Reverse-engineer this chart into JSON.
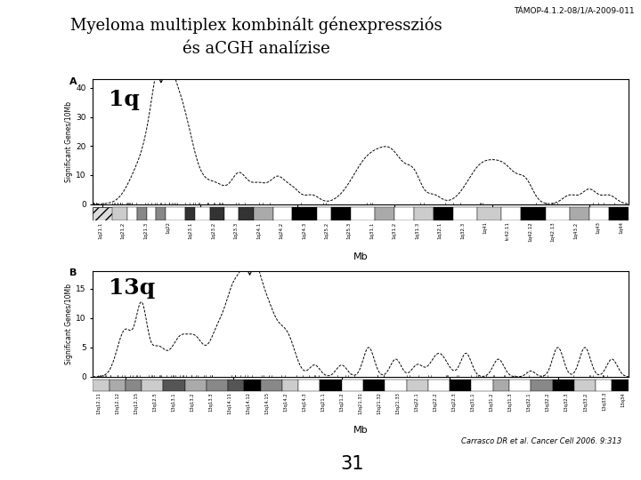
{
  "title_line1": "Myeloma multiplex kombinált génexpressziós",
  "title_line2": "és aCGH analízise",
  "top_right_text": "TÁMOP-4.1.2-08/1/A-2009-011",
  "citation": "Carrasco DR et al. Cancer Cell 2006. 9:313",
  "page_number": "31",
  "panel_A_label": "A",
  "panel_B_label": "B",
  "panel_A_chromosome": "1q",
  "panel_B_chromosome": "13q",
  "panel_A_ylabel": "Significant Genes/10Mb",
  "panel_B_ylabel": "Significant Genes/10Mb",
  "xlabel": "Mb",
  "background_color": "#ffffff",
  "blue_bar_color": "#5577bb",
  "panel_bg": "#ffffff",
  "title_fontsize": 13,
  "panel_A_xlim": [
    138,
    248
  ],
  "panel_A_ylim": [
    0,
    43
  ],
  "panel_A_xticks": [
    140,
    160,
    180,
    200,
    220,
    240
  ],
  "panel_A_yticks": [
    0,
    10,
    20,
    30,
    40
  ],
  "panel_B_xlim": [
    14,
    113
  ],
  "panel_B_ylim": [
    0,
    18
  ],
  "panel_B_xticks": [
    20,
    40,
    60,
    80,
    100
  ],
  "panel_B_yticks": [
    0,
    5,
    10,
    15
  ],
  "cyto_labels_a": [
    "1q21.1",
    "1q21.2",
    "1q21.3",
    "1q22",
    "1q23.1",
    "1q23.2",
    "1q23.3",
    "1q24.1",
    "1q24.2",
    "1q24.3",
    "1q25.2",
    "1q25.3",
    "1q31.1",
    "1q31.2",
    "1q31.3",
    "1q32.1",
    "1q32.3",
    "1q41",
    "tc42.11",
    "1q42.12",
    "1q42.13",
    "1q43.2",
    "1q43",
    "1q44"
  ],
  "cyto_labels_b": [
    "13q12.11",
    "13q12.12",
    "13q12.15",
    "13q12.5",
    "13q13.1",
    "13q13.2",
    "13q13.3",
    "13q14.11",
    "13q14.12",
    "13q14.15",
    "13q14.2",
    "13q14.3",
    "13q21.1",
    "13q21.2",
    "13q21.31",
    "13q21.32",
    "13q21.33",
    "13q22.1",
    "13q22.2",
    "13q22.3",
    "13q31.1",
    "13q31.2",
    "13q31.3",
    "13q32.1",
    "13q32.2",
    "13q32.3",
    "13q33.2",
    "13q33.3",
    "13q34"
  ]
}
